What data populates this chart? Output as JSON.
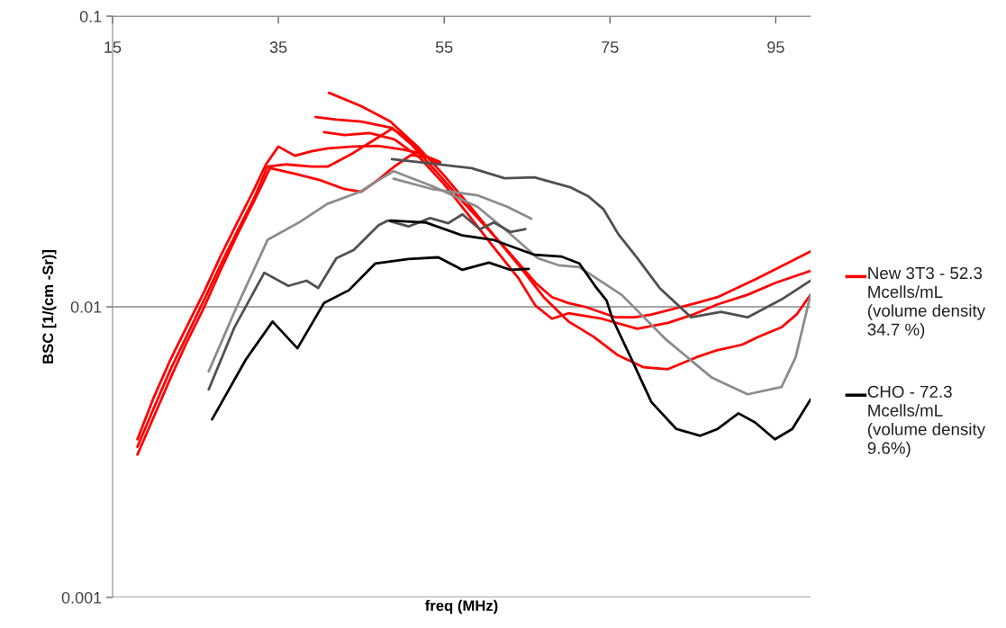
{
  "chart_data": {
    "type": "line",
    "xlabel": "freq (MHz)",
    "ylabel": "BSC [1/(cm -Sr)]",
    "log": "y",
    "xlim": [
      15,
      99.2
    ],
    "xticks": [
      15,
      35,
      55,
      75,
      95
    ],
    "ylim": [
      0.001,
      0.1
    ],
    "yticks": [
      0.001,
      0.01,
      0.1
    ],
    "grid": "y",
    "legend": "right",
    "line_style": "solid",
    "series": [
      {
        "name": "New 3T3 - 52.3 Mcells/mL (volume density 34.7 %)",
        "color": "#ff0000",
        "x": [
          18,
          20,
          22,
          24,
          26,
          28,
          30,
          32,
          33.5,
          35,
          37,
          39,
          41,
          44,
          47,
          50,
          52,
          54.5
        ],
        "values": [
          0.0035,
          0.0049,
          0.0066,
          0.0086,
          0.0112,
          0.0149,
          0.0194,
          0.0251,
          0.0309,
          0.0356,
          0.0331,
          0.0343,
          0.0351,
          0.0356,
          0.0358,
          0.0348,
          0.0338,
          0.0315
        ]
      },
      {
        "color": "#ff0000",
        "x": [
          18,
          20,
          22,
          24,
          26,
          28,
          30,
          32,
          33.7,
          36,
          39,
          41,
          44,
          47,
          48.7,
          50,
          52,
          54
        ],
        "values": [
          0.0033,
          0.0045,
          0.0061,
          0.008,
          0.0105,
          0.0139,
          0.0181,
          0.0234,
          0.0304,
          0.0309,
          0.0304,
          0.0304,
          0.0338,
          0.0382,
          0.041,
          0.039,
          0.0343,
          0.0311
        ]
      },
      {
        "color": "#ff0000",
        "x": [
          18,
          20,
          22,
          24,
          26,
          28,
          30,
          32,
          34,
          37,
          40,
          43,
          45,
          47,
          49,
          51,
          53,
          54.5
        ],
        "values": [
          0.0031,
          0.0042,
          0.0057,
          0.0076,
          0.0099,
          0.0133,
          0.0176,
          0.0229,
          0.03,
          0.0287,
          0.0273,
          0.0254,
          0.0249,
          0.0273,
          0.0304,
          0.0333,
          0.0327,
          0.0311
        ]
      },
      {
        "color": "#ff0000",
        "x": [
          41.1,
          45,
          48.5,
          52,
          55,
          58,
          61,
          64,
          67,
          70,
          73,
          76,
          79,
          82,
          85.4,
          88,
          90.9,
          93,
          95.7,
          97.5,
          99.2
        ],
        "values": [
          0.0545,
          0.049,
          0.0434,
          0.0351,
          0.0283,
          0.0224,
          0.0176,
          0.0139,
          0.0108,
          0.0089,
          0.0079,
          0.0068,
          0.0062,
          0.0061,
          0.0067,
          0.0071,
          0.0074,
          0.0079,
          0.0085,
          0.0094,
          0.011
        ]
      },
      {
        "color": "#ff0000",
        "x": [
          39.5,
          42,
          45,
          48.7,
          51,
          54,
          57,
          60,
          63,
          66,
          68,
          70,
          72,
          75.7,
          78,
          80,
          85.4,
          88,
          92.7,
          95.5,
          99.2
        ],
        "values": [
          0.045,
          0.0441,
          0.0434,
          0.0413,
          0.0363,
          0.0293,
          0.0234,
          0.0189,
          0.0152,
          0.0121,
          0.0108,
          0.0103,
          0.01,
          0.0092,
          0.0092,
          0.0094,
          0.0103,
          0.0108,
          0.0125,
          0.0137,
          0.0155
        ]
      },
      {
        "color": "#ff0000",
        "x": [
          40.5,
          43,
          46,
          49,
          52,
          55,
          58,
          61,
          64,
          66,
          68,
          70,
          74,
          78.3,
          82,
          85,
          88,
          91.6,
          95,
          99.2
        ],
        "values": [
          0.0399,
          0.039,
          0.0396,
          0.0377,
          0.0327,
          0.0264,
          0.0206,
          0.016,
          0.0125,
          0.0101,
          0.0091,
          0.0095,
          0.0091,
          0.0084,
          0.0088,
          0.0094,
          0.0102,
          0.011,
          0.0121,
          0.0133
        ]
      },
      {
        "color": "#8c8c8c",
        "x": [
          26.6,
          29.7,
          33.7,
          37.6,
          40.9,
          44.9,
          47.1,
          48.9,
          53.6,
          59,
          62.6,
          66.3,
          68.8,
          71.3,
          76.4,
          81.8,
          87.3,
          91.6,
          95.7,
          97.4,
          99.2
        ],
        "values": [
          0.006,
          0.0096,
          0.017,
          0.0196,
          0.0226,
          0.0249,
          0.0273,
          0.0293,
          0.026,
          0.0221,
          0.0182,
          0.0147,
          0.0139,
          0.0137,
          0.011,
          0.0077,
          0.0057,
          0.005,
          0.0053,
          0.0067,
          0.011
        ]
      },
      {
        "color": "#8c8c8c",
        "x": [
          48.9,
          53.6,
          59,
          62.6,
          65.5
        ],
        "values": [
          0.0276,
          0.0254,
          0.0242,
          0.0221,
          0.0201
        ]
      },
      {
        "color": "#505050",
        "x": [
          48.7,
          53.6,
          58.3,
          62.3,
          65.9,
          70.2,
          72.4,
          74.2,
          76,
          78.3,
          81,
          84.8,
          88.4,
          91.6,
          95.7,
          99.2
        ],
        "values": [
          0.0322,
          0.0311,
          0.03,
          0.0277,
          0.0279,
          0.0258,
          0.024,
          0.0217,
          0.0178,
          0.0147,
          0.0116,
          0.0092,
          0.0096,
          0.0092,
          0.0106,
          0.0123
        ]
      },
      {
        "color": "#505050",
        "x": [
          26.6,
          29.7,
          33.3,
          36.2,
          38.4,
          39.8,
          42,
          44.1,
          47.1,
          48.2,
          50.7,
          53.3,
          55.5,
          57.2,
          59.3,
          61,
          63,
          64.8
        ],
        "values": [
          0.0052,
          0.0085,
          0.0131,
          0.0118,
          0.0123,
          0.0116,
          0.0147,
          0.0157,
          0.0191,
          0.0198,
          0.0189,
          0.0202,
          0.0194,
          0.0208,
          0.0185,
          0.0195,
          0.0181,
          0.0185
        ]
      },
      {
        "color": "#000000",
        "x": [
          27,
          31.1,
          34.3,
          37.3,
          40.5,
          43.5,
          46.7,
          50.7,
          54.3,
          57.2,
          60.4,
          63,
          65.2
        ],
        "values": [
          0.0041,
          0.0066,
          0.0089,
          0.0072,
          0.0103,
          0.0114,
          0.0141,
          0.0146,
          0.0148,
          0.0134,
          0.0142,
          0.0134,
          0.0135
        ]
      },
      {
        "name": "CHO - 72.3 Mcells/mL (volume density 9.6%)",
        "color": "#000000",
        "x": [
          48.5,
          52.8,
          57.2,
          60.9,
          65.9,
          69.1,
          71.3,
          73.2,
          74.6,
          75.3,
          77.5,
          80,
          83,
          85.9,
          88,
          90.5,
          92.5,
          94.9,
          97,
          99.2
        ],
        "values": [
          0.0198,
          0.0195,
          0.0176,
          0.017,
          0.0151,
          0.0149,
          0.0141,
          0.0118,
          0.0105,
          0.0091,
          0.0067,
          0.0047,
          0.0038,
          0.0036,
          0.0038,
          0.0043,
          0.004,
          0.0035,
          0.0038,
          0.0048
        ]
      }
    ]
  }
}
